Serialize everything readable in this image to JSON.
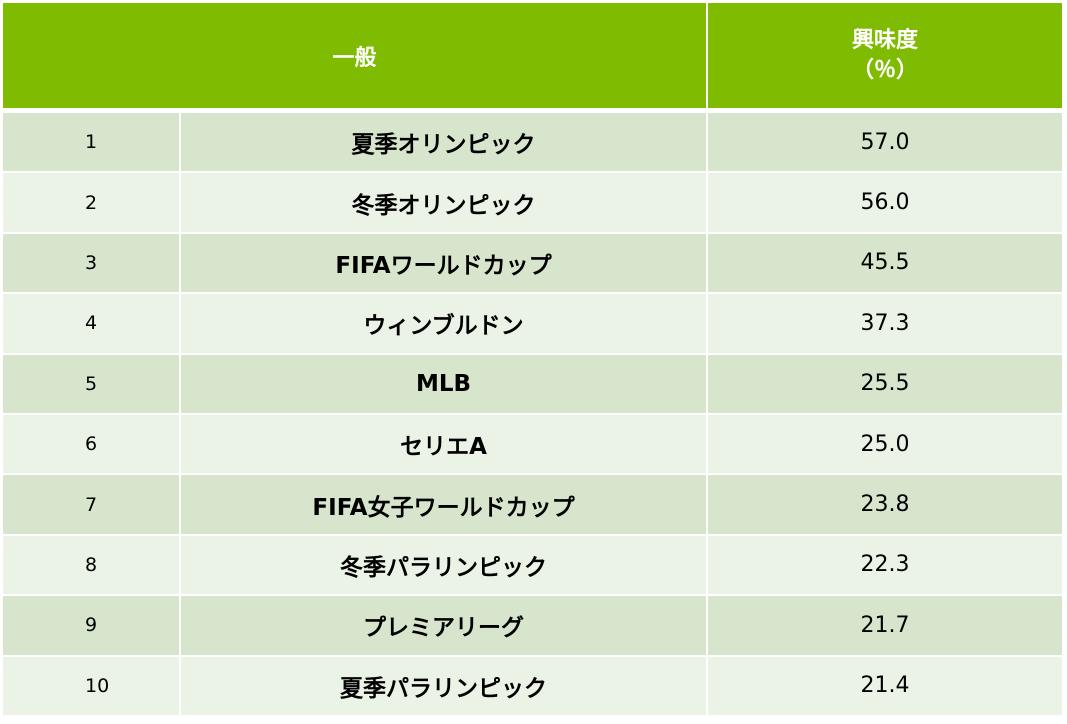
{
  "header": {
    "category": "一般",
    "interest_line1": "興味度",
    "interest_line2": "（％）"
  },
  "rows": [
    {
      "rank": "1",
      "name": "夏季オリンピック",
      "value": "57.0"
    },
    {
      "rank": "2",
      "name": "冬季オリンピック",
      "value": "56.0"
    },
    {
      "rank": "3",
      "name": "FIFAワールドカップ",
      "value": "45.5"
    },
    {
      "rank": "4",
      "name": "ウィンブルドン",
      "value": "37.3"
    },
    {
      "rank": "5",
      "name": "MLB",
      "value": "25.5"
    },
    {
      "rank": "6",
      "name": "セリエA",
      "value": "25.0"
    },
    {
      "rank": "7",
      "name": "FIFA女子ワールドカップ",
      "value": "23.8"
    },
    {
      "rank": "8",
      "name": "冬季パラリンピック",
      "value": "22.3"
    },
    {
      "rank": "9",
      "name": "プレミアリーグ",
      "value": "21.7"
    },
    {
      "rank": "10",
      "name": "夏季パラリンピック",
      "value": "21.4"
    }
  ],
  "colors": {
    "header_bg": "#7fbb00",
    "row_odd": "#d7e5cc",
    "row_even": "#ebf2e6"
  }
}
